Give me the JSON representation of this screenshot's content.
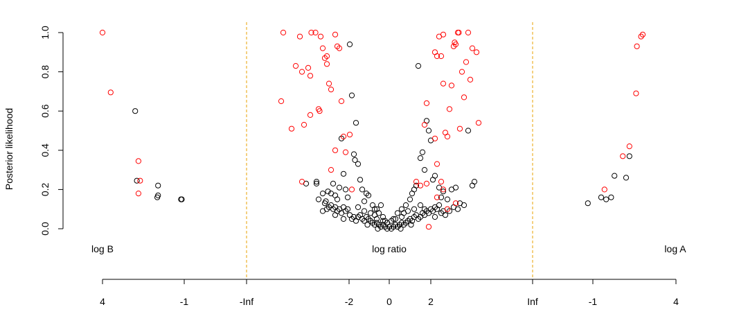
{
  "chart_data": {
    "type": "scatter",
    "ylabel": "Posterior likelihood",
    "ylim": [
      0,
      1
    ],
    "y_ticks": [
      "0.0",
      "0.2",
      "0.4",
      "0.6",
      "0.8",
      "1.0"
    ],
    "panel_labels": {
      "left": "log B",
      "center": "log ratio",
      "right": "log A"
    },
    "x_tick_labels": [
      "4",
      "-1",
      "-Inf",
      "-2",
      "0",
      "2",
      "Inf",
      "-1",
      "4"
    ],
    "colors": {
      "significant": "#ff0000",
      "not_significant": "#000000",
      "divider": "#e8a000"
    },
    "panels": {
      "left": {
        "axis": "log B",
        "xlim": [
          4,
          -1
        ],
        "points_red": [
          [
            4.0,
            1.0
          ],
          [
            3.5,
            0.695
          ],
          [
            1.8,
            0.345
          ],
          [
            1.7,
            0.245
          ],
          [
            1.8,
            0.18
          ]
        ],
        "points_black": [
          [
            2.0,
            0.6
          ],
          [
            1.9,
            0.245
          ],
          [
            0.6,
            0.22
          ],
          [
            0.6,
            0.17
          ],
          [
            0.65,
            0.16
          ],
          [
            -0.8,
            0.15
          ],
          [
            -0.85,
            0.15
          ]
        ]
      },
      "center": {
        "axis": "log ratio",
        "xlim": [
          -6.2,
          6.2
        ],
        "points_red": [
          [
            -5.2,
            0.65
          ],
          [
            -5.1,
            1.0
          ],
          [
            -4.7,
            0.51
          ],
          [
            -4.3,
            0.98
          ],
          [
            -4.5,
            0.83
          ],
          [
            -4.2,
            0.8
          ],
          [
            -4.1,
            0.53
          ],
          [
            -3.9,
            0.82
          ],
          [
            -3.8,
            0.78
          ],
          [
            -3.8,
            0.58
          ],
          [
            -3.75,
            1.0
          ],
          [
            -3.55,
            1.0
          ],
          [
            -3.4,
            0.61
          ],
          [
            -3.35,
            0.6
          ],
          [
            -3.3,
            0.98
          ],
          [
            -3.2,
            0.92
          ],
          [
            -3.1,
            0.87
          ],
          [
            -3.0,
            0.88
          ],
          [
            -3.0,
            0.84
          ],
          [
            -2.9,
            0.74
          ],
          [
            -2.8,
            0.71
          ],
          [
            -2.6,
            0.99
          ],
          [
            -2.6,
            0.4
          ],
          [
            -2.5,
            0.93
          ],
          [
            -2.4,
            0.92
          ],
          [
            -2.3,
            0.65
          ],
          [
            -2.2,
            0.47
          ],
          [
            -2.1,
            0.39
          ],
          [
            -2.8,
            0.3
          ],
          [
            -1.9,
            0.48
          ],
          [
            -4.2,
            0.24
          ],
          [
            -1.8,
            0.2
          ],
          [
            1.3,
            0.24
          ],
          [
            1.5,
            0.22
          ],
          [
            1.7,
            0.53
          ],
          [
            1.8,
            0.64
          ],
          [
            2.2,
            0.9
          ],
          [
            2.3,
            0.88
          ],
          [
            2.4,
            0.98
          ],
          [
            2.5,
            0.88
          ],
          [
            2.6,
            0.74
          ],
          [
            2.6,
            0.99
          ],
          [
            2.7,
            0.49
          ],
          [
            2.8,
            0.47
          ],
          [
            2.9,
            0.61
          ],
          [
            3.0,
            0.73
          ],
          [
            3.1,
            0.93
          ],
          [
            3.15,
            0.95
          ],
          [
            3.2,
            0.94
          ],
          [
            3.3,
            1.0
          ],
          [
            3.35,
            1.0
          ],
          [
            3.4,
            0.51
          ],
          [
            3.5,
            0.8
          ],
          [
            3.6,
            0.67
          ],
          [
            3.7,
            0.85
          ],
          [
            3.8,
            1.0
          ],
          [
            3.9,
            0.76
          ],
          [
            4.0,
            0.92
          ],
          [
            4.2,
            0.9
          ],
          [
            4.3,
            0.54
          ],
          [
            2.2,
            0.46
          ],
          [
            2.3,
            0.33
          ],
          [
            2.5,
            0.24
          ],
          [
            2.6,
            0.2
          ],
          [
            2.8,
            0.1
          ],
          [
            3.2,
            0.13
          ],
          [
            1.8,
            0.23
          ],
          [
            1.9,
            0.01
          ],
          [
            2.3,
            0.16
          ]
        ],
        "points_black": [
          [
            -4.0,
            0.23
          ],
          [
            -3.5,
            0.23
          ],
          [
            -3.5,
            0.24
          ],
          [
            -3.4,
            0.15
          ],
          [
            -3.2,
            0.18
          ],
          [
            -3.1,
            0.13
          ],
          [
            -3.05,
            0.14
          ],
          [
            -2.95,
            0.19
          ],
          [
            -2.8,
            0.18
          ],
          [
            -2.7,
            0.23
          ],
          [
            -2.6,
            0.17
          ],
          [
            -2.5,
            0.15
          ],
          [
            -2.4,
            0.21
          ],
          [
            -2.3,
            0.46
          ],
          [
            -2.2,
            0.28
          ],
          [
            -2.1,
            0.2
          ],
          [
            -2.0,
            0.16
          ],
          [
            -1.9,
            0.94
          ],
          [
            -1.8,
            0.68
          ],
          [
            -1.7,
            0.38
          ],
          [
            -1.65,
            0.35
          ],
          [
            -1.6,
            0.54
          ],
          [
            -1.5,
            0.33
          ],
          [
            -1.4,
            0.25
          ],
          [
            -1.3,
            0.2
          ],
          [
            -1.2,
            0.14
          ],
          [
            -1.1,
            0.18
          ],
          [
            -1.0,
            0.17
          ],
          [
            -0.8,
            0.12
          ],
          [
            -0.7,
            0.1
          ],
          [
            -0.6,
            0.1
          ],
          [
            -0.5,
            0.08
          ],
          [
            -0.4,
            0.12
          ],
          [
            -0.3,
            0.06
          ],
          [
            -0.2,
            0.04
          ],
          [
            0.2,
            0.05
          ],
          [
            0.4,
            0.08
          ],
          [
            0.6,
            0.1
          ],
          [
            0.8,
            0.12
          ],
          [
            1.0,
            0.15
          ],
          [
            1.1,
            0.18
          ],
          [
            1.2,
            0.2
          ],
          [
            1.3,
            0.22
          ],
          [
            1.4,
            0.83
          ],
          [
            1.5,
            0.36
          ],
          [
            1.6,
            0.39
          ],
          [
            1.7,
            0.3
          ],
          [
            1.8,
            0.55
          ],
          [
            1.9,
            0.5
          ],
          [
            2.0,
            0.45
          ],
          [
            2.1,
            0.25
          ],
          [
            2.2,
            0.27
          ],
          [
            2.4,
            0.21
          ],
          [
            2.5,
            0.16
          ],
          [
            2.6,
            0.19
          ],
          [
            2.8,
            0.15
          ],
          [
            3.0,
            0.2
          ],
          [
            3.2,
            0.21
          ],
          [
            3.4,
            0.13
          ],
          [
            3.6,
            0.12
          ],
          [
            3.8,
            0.5
          ],
          [
            4.1,
            0.24
          ],
          [
            4.0,
            0.22
          ],
          [
            -1.8,
            0.05
          ],
          [
            -1.6,
            0.04
          ],
          [
            -1.5,
            0.06
          ],
          [
            -1.4,
            0.07
          ],
          [
            -1.3,
            0.05
          ],
          [
            -1.2,
            0.04
          ],
          [
            -1.1,
            0.06
          ],
          [
            -1.0,
            0.05
          ],
          [
            -0.9,
            0.04
          ],
          [
            -0.8,
            0.03
          ],
          [
            -0.7,
            0.02
          ],
          [
            -0.6,
            0.03
          ],
          [
            -0.5,
            0.02
          ],
          [
            -0.4,
            0.01
          ],
          [
            -0.3,
            0.02
          ],
          [
            -0.2,
            0.01
          ],
          [
            -0.1,
            0.0
          ],
          [
            0.0,
            0.01
          ],
          [
            0.1,
            0.0
          ],
          [
            0.2,
            0.01
          ],
          [
            0.3,
            0.02
          ],
          [
            0.4,
            0.01
          ],
          [
            0.5,
            0.02
          ],
          [
            0.6,
            0.03
          ],
          [
            0.7,
            0.02
          ],
          [
            0.8,
            0.03
          ],
          [
            0.9,
            0.04
          ],
          [
            1.0,
            0.05
          ],
          [
            1.1,
            0.04
          ],
          [
            1.2,
            0.06
          ],
          [
            1.3,
            0.07
          ],
          [
            1.4,
            0.05
          ],
          [
            1.5,
            0.06
          ],
          [
            1.6,
            0.08
          ],
          [
            1.7,
            0.07
          ],
          [
            1.8,
            0.09
          ],
          [
            1.9,
            0.08
          ],
          [
            2.0,
            0.1
          ],
          [
            2.1,
            0.09
          ],
          [
            2.2,
            0.11
          ],
          [
            2.3,
            0.1
          ],
          [
            2.4,
            0.12
          ],
          [
            -2.0,
            0.1
          ],
          [
            -2.1,
            0.09
          ],
          [
            -2.2,
            0.11
          ],
          [
            -2.3,
            0.08
          ],
          [
            -2.4,
            0.1
          ],
          [
            -2.5,
            0.09
          ],
          [
            -2.6,
            0.11
          ],
          [
            -2.7,
            0.1
          ],
          [
            -2.8,
            0.12
          ],
          [
            -2.9,
            0.11
          ],
          [
            -3.0,
            0.1
          ],
          [
            -1.9,
            0.07
          ],
          [
            -1.7,
            0.06
          ],
          [
            -0.9,
            0.08
          ],
          [
            0.9,
            0.09
          ],
          [
            1.7,
            0.1
          ],
          [
            2.5,
            0.08
          ],
          [
            2.7,
            0.07
          ],
          [
            2.9,
            0.09
          ],
          [
            3.1,
            0.11
          ],
          [
            -0.6,
            0.05
          ],
          [
            0.6,
            0.06
          ],
          [
            -0.3,
            0.04
          ],
          [
            0.3,
            0.05
          ],
          [
            -1.2,
            0.09
          ],
          [
            1.2,
            0.1
          ],
          [
            -2.2,
            0.05
          ],
          [
            2.2,
            0.06
          ],
          [
            -1.5,
            0.11
          ],
          [
            1.5,
            0.12
          ],
          [
            -0.1,
            0.03
          ],
          [
            0.1,
            0.04
          ],
          [
            -0.7,
            0.07
          ],
          [
            0.7,
            0.08
          ],
          [
            -2.6,
            0.07
          ],
          [
            2.6,
            0.09
          ],
          [
            -3.2,
            0.09
          ],
          [
            3.3,
            0.1
          ],
          [
            -1.05,
            0.02
          ],
          [
            1.05,
            0.02
          ],
          [
            -0.55,
            0.0
          ],
          [
            0.55,
            0.0
          ]
        ]
      },
      "right": {
        "axis": "log A",
        "xlim": [
          -1,
          4
        ],
        "points_red": [
          [
            -0.3,
            0.2
          ],
          [
            0.8,
            0.37
          ],
          [
            1.2,
            0.42
          ],
          [
            1.6,
            0.69
          ],
          [
            1.65,
            0.93
          ],
          [
            1.9,
            0.98
          ],
          [
            2.0,
            0.99
          ]
        ],
        "points_black": [
          [
            -1.3,
            0.13
          ],
          [
            -0.5,
            0.16
          ],
          [
            -0.2,
            0.15
          ],
          [
            0.1,
            0.16
          ],
          [
            0.3,
            0.27
          ],
          [
            1.0,
            0.26
          ],
          [
            1.2,
            0.37
          ]
        ]
      }
    }
  }
}
